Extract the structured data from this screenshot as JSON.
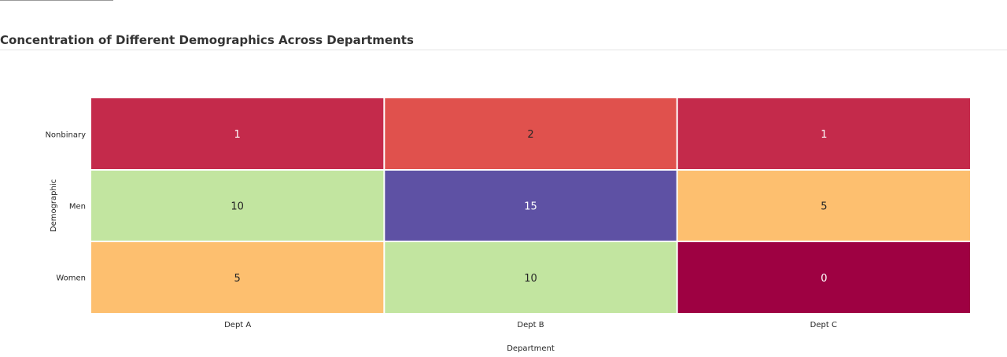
{
  "page": {
    "title": "Concentration of Different Demographics Across Departments"
  },
  "chart_data": {
    "type": "heatmap",
    "title": "Concentration of Different Demographics Across Departments",
    "xlabel": "Department",
    "ylabel": "Demographic",
    "x_categories": [
      "Dept A",
      "Dept B",
      "Dept C"
    ],
    "y_categories": [
      "Nonbinary",
      "Men",
      "Women"
    ],
    "values": [
      [
        1,
        2,
        1
      ],
      [
        10,
        15,
        5
      ],
      [
        5,
        10,
        0
      ]
    ],
    "color_map": {
      "0": "#9e0142",
      "1": "#c42a4b",
      "2": "#e0514d",
      "5": "#fdbf6f",
      "10": "#c2e5a0",
      "15": "#5e51a4"
    },
    "light_text_values": [
      0,
      1,
      15
    ]
  }
}
